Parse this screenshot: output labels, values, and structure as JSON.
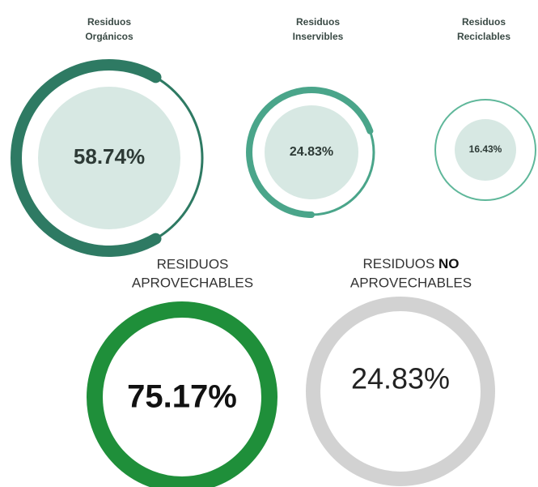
{
  "top": [
    {
      "label_line1": "Residuos",
      "label_line2": "Orgánicos",
      "value": "58.74%"
    },
    {
      "label_line1": "Residuos",
      "label_line2": "Inservibles",
      "value": "24.83%"
    },
    {
      "label_line1": "Residuos",
      "label_line2": "Reciclables",
      "value": "16.43%"
    }
  ],
  "bottom": [
    {
      "label_line1": "RESIDUOS",
      "label_line2": "APROVECHABLES",
      "value": "75.17%"
    },
    {
      "label_line1": "RESIDUOS",
      "label_bold": "NO",
      "label_line2": "APROVECHABLES",
      "value": "24.83%"
    }
  ]
}
